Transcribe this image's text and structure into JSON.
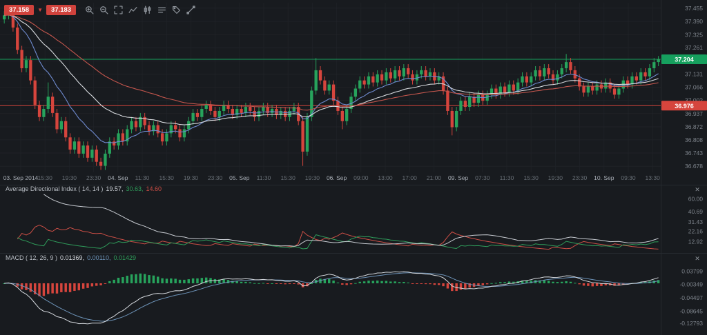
{
  "toolbar": {
    "sell_price": "37.158",
    "buy_price": "37.183",
    "tick_direction": "down",
    "icons": [
      "zoom-in-icon",
      "zoom-out-icon",
      "expand-icon",
      "line-chart-icon",
      "candlestick-chart-icon",
      "indicator-list-icon",
      "tag-icon",
      "trendline-icon"
    ]
  },
  "chart_data": {
    "type": "candlestick",
    "title": "",
    "price_range": [
      36.655,
      37.475
    ],
    "colors": {
      "up": "#27a35c",
      "down": "#d6453d"
    },
    "price_axis": {
      "ticks": [
        "37.455",
        "37.390",
        "37.325",
        "37.261",
        "37.196",
        "37.131",
        "37.066",
        "37.002",
        "36.937",
        "36.872",
        "36.808",
        "36.743",
        "36.678"
      ],
      "current_price": {
        "value": "37.204",
        "color": "#16a05e"
      },
      "order_line": {
        "value": "36.976",
        "color": "#d6453d"
      }
    },
    "time_axis": [
      {
        "label": "03. Sep 2014",
        "major": true
      },
      {
        "label": "15:30",
        "major": false
      },
      {
        "label": "19:30",
        "major": false
      },
      {
        "label": "23:30",
        "major": false
      },
      {
        "label": "04. Sep",
        "major": true
      },
      {
        "label": "11:30",
        "major": false
      },
      {
        "label": "15:30",
        "major": false
      },
      {
        "label": "19:30",
        "major": false
      },
      {
        "label": "23:30",
        "major": false
      },
      {
        "label": "05. Sep",
        "major": true
      },
      {
        "label": "11:30",
        "major": false
      },
      {
        "label": "15:30",
        "major": false
      },
      {
        "label": "19:30",
        "major": false
      },
      {
        "label": "06. Sep",
        "major": true
      },
      {
        "label": "09:00",
        "major": false
      },
      {
        "label": "13:00",
        "major": false
      },
      {
        "label": "17:00",
        "major": false
      },
      {
        "label": "21:00",
        "major": false
      },
      {
        "label": "09. Sep",
        "major": true
      },
      {
        "label": "07:30",
        "major": false
      },
      {
        "label": "11:30",
        "major": false
      },
      {
        "label": "15:30",
        "major": false
      },
      {
        "label": "19:30",
        "major": false
      },
      {
        "label": "23:30",
        "major": false
      },
      {
        "label": "10. Sep",
        "major": true
      },
      {
        "label": "09:30",
        "major": false
      },
      {
        "label": "13:30",
        "major": false
      }
    ],
    "candles": [
      [
        37.4,
        37.44,
        37.38,
        37.42
      ],
      [
        37.42,
        37.455,
        37.4,
        37.44
      ],
      [
        37.44,
        37.45,
        37.34,
        37.36
      ],
      [
        37.36,
        37.38,
        37.23,
        37.25
      ],
      [
        37.25,
        37.27,
        37.14,
        37.16
      ],
      [
        37.16,
        37.22,
        37.14,
        37.2
      ],
      [
        37.2,
        37.22,
        37.08,
        37.1
      ],
      [
        37.1,
        37.12,
        36.96,
        36.98
      ],
      [
        36.98,
        37.0,
        36.9,
        36.92
      ],
      [
        36.92,
        36.98,
        36.9,
        36.96
      ],
      [
        36.96,
        37.09,
        36.94,
        37.02
      ],
      [
        37.02,
        37.04,
        36.92,
        36.94
      ],
      [
        36.94,
        36.96,
        36.84,
        36.86
      ],
      [
        36.86,
        36.92,
        36.84,
        36.9
      ],
      [
        36.9,
        36.92,
        36.8,
        36.82
      ],
      [
        36.82,
        36.84,
        36.74,
        36.76
      ],
      [
        36.76,
        36.82,
        36.74,
        36.8
      ],
      [
        36.8,
        36.82,
        36.72,
        36.74
      ],
      [
        36.74,
        36.8,
        36.72,
        36.78
      ],
      [
        36.78,
        36.8,
        36.7,
        36.72
      ],
      [
        36.72,
        36.78,
        36.7,
        36.76
      ],
      [
        36.76,
        36.78,
        36.68,
        36.7
      ],
      [
        36.7,
        36.72,
        36.66,
        36.68
      ],
      [
        36.68,
        36.76,
        36.66,
        36.74
      ],
      [
        36.74,
        36.82,
        36.72,
        36.8
      ],
      [
        36.8,
        36.82,
        36.76,
        36.78
      ],
      [
        36.78,
        36.86,
        36.76,
        36.84
      ],
      [
        36.84,
        36.86,
        36.78,
        36.8
      ],
      [
        36.8,
        36.88,
        36.78,
        36.86
      ],
      [
        36.86,
        36.92,
        36.84,
        36.9
      ],
      [
        36.9,
        36.92,
        36.85,
        36.87
      ],
      [
        36.87,
        36.94,
        36.85,
        36.92
      ],
      [
        36.92,
        36.94,
        36.86,
        36.88
      ],
      [
        36.88,
        36.9,
        36.83,
        36.85
      ],
      [
        36.85,
        36.9,
        36.83,
        36.88
      ],
      [
        36.88,
        36.9,
        36.82,
        36.84
      ],
      [
        36.84,
        36.86,
        36.78,
        36.8
      ],
      [
        36.8,
        36.86,
        36.78,
        36.84
      ],
      [
        36.84,
        36.9,
        36.82,
        36.88
      ],
      [
        36.88,
        36.9,
        36.84,
        36.86
      ],
      [
        36.86,
        36.88,
        36.8,
        36.82
      ],
      [
        36.82,
        36.88,
        36.8,
        36.86
      ],
      [
        36.86,
        36.92,
        36.84,
        36.9
      ],
      [
        36.9,
        36.96,
        36.88,
        36.94
      ],
      [
        36.94,
        36.96,
        36.9,
        36.92
      ],
      [
        36.92,
        36.98,
        36.9,
        36.96
      ],
      [
        36.96,
        37.0,
        36.94,
        36.98
      ],
      [
        36.98,
        37.0,
        36.93,
        36.95
      ],
      [
        36.95,
        36.97,
        36.9,
        36.92
      ],
      [
        36.92,
        36.97,
        36.9,
        36.95
      ],
      [
        36.95,
        37.0,
        36.93,
        36.98
      ],
      [
        36.98,
        37.0,
        36.94,
        36.96
      ],
      [
        36.96,
        36.98,
        36.91,
        36.93
      ],
      [
        36.93,
        36.98,
        36.91,
        36.96
      ],
      [
        36.96,
        36.98,
        36.92,
        36.94
      ],
      [
        36.94,
        36.99,
        36.92,
        36.97
      ],
      [
        36.97,
        36.99,
        36.93,
        36.95
      ],
      [
        36.95,
        36.97,
        36.9,
        36.92
      ],
      [
        36.92,
        36.97,
        36.9,
        36.95
      ],
      [
        36.95,
        36.99,
        36.93,
        36.97
      ],
      [
        36.97,
        36.99,
        36.92,
        36.94
      ],
      [
        36.94,
        36.98,
        36.92,
        36.96
      ],
      [
        36.96,
        36.98,
        36.91,
        36.93
      ],
      [
        36.93,
        36.97,
        36.91,
        36.95
      ],
      [
        36.95,
        36.97,
        36.9,
        36.92
      ],
      [
        36.92,
        36.97,
        36.9,
        36.95
      ],
      [
        36.95,
        36.99,
        36.93,
        36.97
      ],
      [
        36.97,
        36.99,
        36.88,
        36.9
      ],
      [
        36.9,
        36.92,
        36.68,
        36.75
      ],
      [
        36.75,
        36.94,
        36.73,
        36.92
      ],
      [
        36.92,
        37.07,
        36.9,
        37.05
      ],
      [
        37.05,
        37.21,
        37.03,
        37.15
      ],
      [
        37.15,
        37.17,
        37.08,
        37.1
      ],
      [
        37.1,
        37.12,
        37.03,
        37.05
      ],
      [
        37.05,
        37.1,
        37.03,
        37.08
      ],
      [
        37.08,
        37.1,
        36.98,
        37.0
      ],
      [
        37.0,
        37.02,
        36.93,
        36.95
      ],
      [
        36.95,
        36.97,
        36.86,
        36.9
      ],
      [
        36.9,
        36.98,
        36.88,
        36.96
      ],
      [
        36.96,
        37.04,
        36.94,
        37.02
      ],
      [
        37.02,
        37.08,
        37.0,
        37.06
      ],
      [
        37.06,
        37.12,
        37.04,
        37.1
      ],
      [
        37.1,
        37.12,
        37.06,
        37.08
      ],
      [
        37.08,
        37.14,
        37.06,
        37.12
      ],
      [
        37.12,
        37.14,
        37.07,
        37.09
      ],
      [
        37.09,
        37.15,
        37.07,
        37.13
      ],
      [
        37.13,
        37.15,
        37.08,
        37.1
      ],
      [
        37.1,
        37.16,
        37.08,
        37.14
      ],
      [
        37.14,
        37.16,
        37.09,
        37.11
      ],
      [
        37.11,
        37.17,
        37.09,
        37.15
      ],
      [
        37.15,
        37.17,
        37.1,
        37.12
      ],
      [
        37.12,
        37.18,
        37.1,
        37.16
      ],
      [
        37.16,
        37.18,
        37.11,
        37.13
      ],
      [
        37.13,
        37.15,
        37.08,
        37.1
      ],
      [
        37.1,
        37.15,
        37.08,
        37.13
      ],
      [
        37.13,
        37.17,
        37.11,
        37.15
      ],
      [
        37.15,
        37.17,
        37.1,
        37.12
      ],
      [
        37.12,
        37.16,
        37.1,
        37.14
      ],
      [
        37.14,
        37.16,
        37.08,
        37.1
      ],
      [
        37.1,
        37.14,
        37.08,
        37.12
      ],
      [
        37.12,
        37.14,
        37.03,
        37.05
      ],
      [
        37.05,
        37.07,
        36.93,
        36.95
      ],
      [
        36.95,
        36.97,
        36.83,
        36.87
      ],
      [
        36.87,
        36.97,
        36.85,
        36.95
      ],
      [
        36.95,
        37.02,
        36.93,
        37.0
      ],
      [
        37.0,
        37.02,
        36.95,
        36.97
      ],
      [
        36.97,
        37.04,
        36.95,
        37.02
      ],
      [
        37.02,
        37.04,
        36.97,
        36.99
      ],
      [
        36.99,
        37.05,
        36.97,
        37.03
      ],
      [
        37.03,
        37.05,
        36.98,
        37.0
      ],
      [
        37.0,
        37.05,
        36.98,
        37.03
      ],
      [
        37.03,
        37.08,
        37.01,
        37.06
      ],
      [
        37.06,
        37.08,
        37.01,
        37.03
      ],
      [
        37.03,
        37.09,
        37.01,
        37.07
      ],
      [
        37.07,
        37.09,
        37.02,
        37.04
      ],
      [
        37.04,
        37.1,
        37.02,
        37.08
      ],
      [
        37.08,
        37.1,
        37.03,
        37.05
      ],
      [
        37.05,
        37.11,
        37.03,
        37.09
      ],
      [
        37.09,
        37.14,
        37.07,
        37.12
      ],
      [
        37.12,
        37.14,
        37.07,
        37.09
      ],
      [
        37.09,
        37.14,
        37.07,
        37.12
      ],
      [
        37.12,
        37.17,
        37.1,
        37.15
      ],
      [
        37.15,
        37.17,
        37.1,
        37.12
      ],
      [
        37.12,
        37.18,
        37.1,
        37.16
      ],
      [
        37.16,
        37.18,
        37.11,
        37.13
      ],
      [
        37.13,
        37.15,
        37.08,
        37.1
      ],
      [
        37.1,
        37.15,
        37.08,
        37.13
      ],
      [
        37.13,
        37.18,
        37.11,
        37.16
      ],
      [
        37.16,
        37.23,
        37.14,
        37.19
      ],
      [
        37.19,
        37.21,
        37.13,
        37.15
      ],
      [
        37.15,
        37.17,
        37.09,
        37.11
      ],
      [
        37.11,
        37.13,
        37.05,
        37.07
      ],
      [
        37.07,
        37.09,
        37.02,
        37.04
      ],
      [
        37.04,
        37.09,
        37.02,
        37.07
      ],
      [
        37.07,
        37.09,
        37.03,
        37.05
      ],
      [
        37.05,
        37.1,
        37.03,
        37.08
      ],
      [
        37.08,
        37.1,
        37.04,
        37.06
      ],
      [
        37.06,
        37.11,
        37.04,
        37.09
      ],
      [
        37.09,
        37.11,
        37.04,
        37.06
      ],
      [
        37.06,
        37.08,
        37.01,
        37.03
      ],
      [
        37.03,
        37.08,
        37.01,
        37.06
      ],
      [
        37.06,
        37.12,
        37.04,
        37.1
      ],
      [
        37.1,
        37.12,
        37.06,
        37.08
      ],
      [
        37.08,
        37.14,
        37.06,
        37.12
      ],
      [
        37.12,
        37.14,
        37.08,
        37.1
      ],
      [
        37.1,
        37.16,
        37.08,
        37.14
      ],
      [
        37.14,
        37.16,
        37.1,
        37.12
      ],
      [
        37.12,
        37.18,
        37.1,
        37.16
      ],
      [
        37.16,
        37.21,
        37.14,
        37.19
      ],
      [
        37.19,
        37.22,
        37.17,
        37.204
      ]
    ],
    "overlays": [
      {
        "name": "ma-fast-line",
        "period": 12,
        "color": "#6f8bd0"
      },
      {
        "name": "ma-mid-line",
        "period": 28,
        "color": "#d8dbdf"
      },
      {
        "name": "ma-slow-line",
        "period": 55,
        "color": "#c4564d"
      }
    ],
    "adx": {
      "title": "Average Directional Index ( 14, 14 )",
      "period": 14,
      "values": [
        "19.57",
        "30.63",
        "14.60"
      ],
      "value_colors": [
        "#c9cdd3",
        "#2f9e5b",
        "#cd4f46"
      ],
      "line_colors": {
        "adx": "#c9cdd3",
        "plus_di": "#2f9e5b",
        "minus_di": "#cd4f46"
      },
      "axis_ticks": [
        "60.00",
        "40.69",
        "31.43",
        "22.16",
        "12.92"
      ]
    },
    "macd": {
      "title": "MACD ( 12, 26, 9 )",
      "fast": 12,
      "slow": 26,
      "signal": 9,
      "values": [
        "0.01369",
        "0.00110",
        "0.01429"
      ],
      "value_colors": [
        "#d5d9de",
        "#6d93b8",
        "#2f9e5b"
      ],
      "line_colors": {
        "macd": "#d5d9de",
        "signal": "#6d93b8"
      },
      "axis_ticks": [
        "0.03799",
        "-0.00349",
        "-0.04497",
        "-0.08645",
        "-0.12793"
      ]
    }
  }
}
